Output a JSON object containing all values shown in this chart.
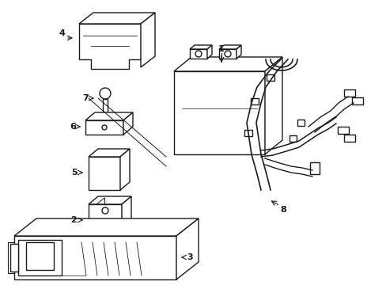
{
  "bg_color": "#ffffff",
  "lc": "#1a1a1a",
  "lw": 1.0,
  "figsize": [
    4.89,
    3.6
  ],
  "dpi": 100
}
